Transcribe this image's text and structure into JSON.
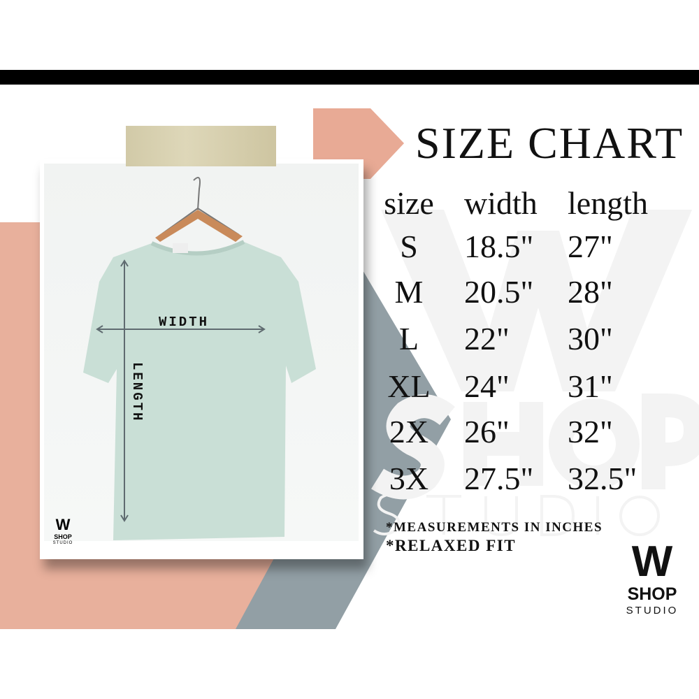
{
  "title": "SIZE CHART",
  "headers": {
    "size": "size",
    "width": "width",
    "length": "length"
  },
  "rows": [
    {
      "size": "S",
      "width": "18.5\"",
      "length": "27\""
    },
    {
      "size": "M",
      "width": "20.5\"",
      "length": "28\""
    },
    {
      "size": "L",
      "width": "22\"",
      "length": "30\""
    },
    {
      "size": "XL",
      "width": "24\"",
      "length": "31\""
    },
    {
      "size": "2X",
      "width": "26\"",
      "length": "32\""
    },
    {
      "size": "3X",
      "width": "27.5\"",
      "length": "32.5\""
    }
  ],
  "notes": [
    "*MEASUREMENTS IN INCHES",
    "*RELAXED FIT"
  ],
  "diagram": {
    "width_label": "WIDTH",
    "length_label": "LENGTH"
  },
  "logo": {
    "mark": "W",
    "line1": "SHOP",
    "line2": "STUDIO"
  },
  "colors": {
    "salmon": "#e8b09c",
    "slate": "#929fa5",
    "shirt": "#c9dfd6",
    "arrow": "#5f6b70",
    "bar": "#000000"
  }
}
